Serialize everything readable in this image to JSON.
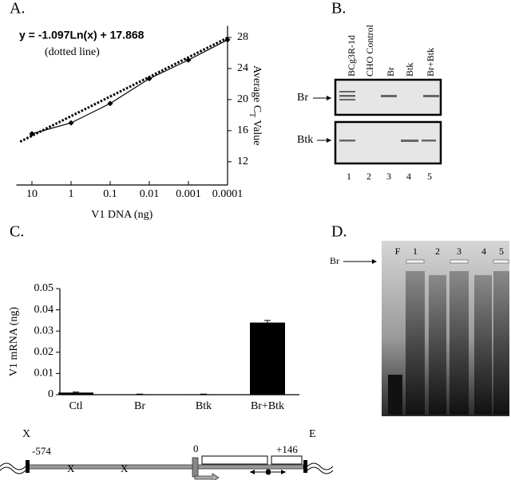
{
  "panels": [
    "A.",
    "B.",
    "C.",
    "D."
  ],
  "chart_data": [
    {
      "type": "line",
      "x_label": "V1 DNA (ng)",
      "y_label": [
        "Average C",
        "T",
        " Value"
      ],
      "annotations": [
        "y = -1.097Ln(x) + 17.868",
        "(dotted line)"
      ],
      "x": [
        10,
        1,
        0.1,
        0.01,
        0.001,
        0.0001
      ],
      "series": [
        {
          "values": [
            15.6,
            17.0,
            19.5,
            22.7,
            25.1,
            27.7
          ],
          "color": "#000000",
          "marker": "diamond"
        },
        {
          "x": [
            20,
            0.0001
          ],
          "values": [
            14.58,
            27.97
          ],
          "color": "#000000",
          "style": "dotted"
        }
      ],
      "xscale": "log",
      "xlim": [
        25,
        0.0001
      ],
      "xticks": [
        10,
        1,
        0.1,
        0.01,
        0.001,
        0.0001
      ],
      "ylim": [
        9,
        29.5
      ],
      "yticks": [
        12,
        16,
        20,
        24,
        28
      ],
      "y_axis": "right"
    },
    {
      "type": "bar",
      "y_label": "V1 mRNA (ng)",
      "categories": [
        "Ctl",
        "Br",
        "Btk",
        "Br+Btk"
      ],
      "values": [
        0.001,
        0.0002,
        0.0002,
        0.034
      ],
      "errors": [
        0.0002,
        0.0001,
        0.0001,
        0.001
      ],
      "color": "#000000",
      "ylim": [
        0,
        0.05
      ],
      "yticks": [
        0,
        0.01,
        0.02,
        0.03,
        0.04,
        0.05
      ]
    }
  ],
  "gel_b": {
    "lanes": [
      "BCg3R-1d",
      "CHO Control",
      "Br",
      "Btk",
      "Br+Btk"
    ],
    "rows": [
      "Br",
      "Btk"
    ],
    "lane_numbers": [
      "1",
      "2",
      "3",
      "4",
      "5"
    ]
  },
  "gel_d": {
    "lanes": [
      "F",
      "1",
      "2",
      "3",
      "4",
      "5"
    ],
    "band": "Br"
  },
  "diagram": {
    "labels": [
      "X",
      "-574",
      "X",
      "X",
      "0",
      "+146",
      "E"
    ]
  }
}
